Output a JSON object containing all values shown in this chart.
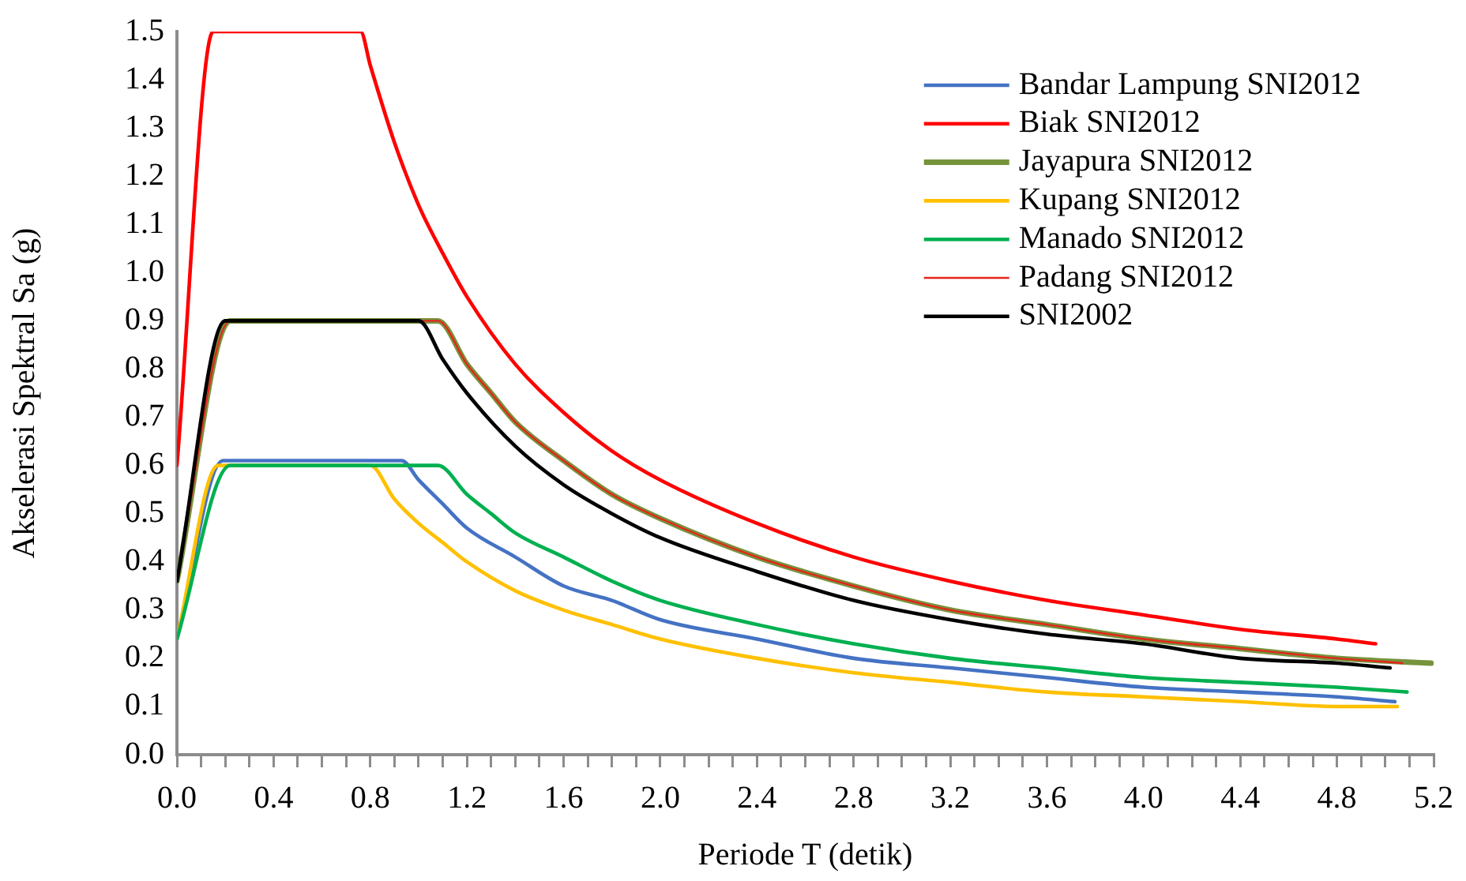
{
  "chart_data": {
    "type": "line",
    "xlabel": "Periode T (detik)",
    "ylabel": "Akselerasi Spektral Sa (g)",
    "xlim": [
      0,
      5.2
    ],
    "ylim": [
      0,
      1.5
    ],
    "xticks": [
      {
        "value": 0,
        "label": "0.0"
      },
      {
        "value": 0.1,
        "label": null
      },
      {
        "value": 0.2,
        "label": null
      },
      {
        "value": 0.3,
        "label": null
      },
      0.4,
      {
        "value": 0.5,
        "label": null
      },
      {
        "value": 0.6,
        "label": null
      },
      {
        "value": 0.7,
        "label": null
      },
      0.8,
      {
        "value": 0.9,
        "label": null
      },
      {
        "value": 1,
        "label": null
      },
      {
        "value": 1.1,
        "label": null
      },
      1.2,
      {
        "value": 1.3,
        "label": null
      },
      {
        "value": 1.4,
        "label": null
      },
      {
        "value": 1.5,
        "label": null
      },
      1.6,
      {
        "value": 1.7,
        "label": null
      },
      {
        "value": 1.8,
        "label": null
      },
      {
        "value": 1.9,
        "label": null
      },
      {
        "value": 2,
        "label": "2.0"
      },
      {
        "value": 2.1,
        "label": null
      },
      {
        "value": 2.2,
        "label": null
      },
      {
        "value": 2.3,
        "label": null
      },
      2.4,
      {
        "value": 2.5,
        "label": null
      },
      {
        "value": 2.6,
        "label": null
      },
      {
        "value": 2.7,
        "label": null
      },
      2.8,
      {
        "value": 2.9,
        "label": null
      },
      {
        "value": 3,
        "label": null
      },
      {
        "value": 3.1,
        "label": null
      },
      3.2,
      {
        "value": 3.3,
        "label": null
      },
      {
        "value": 3.4,
        "label": null
      },
      {
        "value": 3.5,
        "label": null
      },
      3.6,
      {
        "value": 3.7,
        "label": null
      },
      {
        "value": 3.8,
        "label": null
      },
      {
        "value": 3.9,
        "label": null
      },
      {
        "value": 4,
        "label": "4.0"
      },
      {
        "value": 4.1,
        "label": null
      },
      {
        "value": 4.2,
        "label": null
      },
      {
        "value": 4.3,
        "label": null
      },
      4.4,
      {
        "value": 4.5,
        "label": null
      },
      {
        "value": 4.6,
        "label": null
      },
      {
        "value": 4.7,
        "label": null
      },
      4.8,
      {
        "value": 4.9,
        "label": null
      },
      {
        "value": 5,
        "label": null
      },
      {
        "value": 5.1,
        "label": null
      },
      5.2
    ],
    "yticks": [
      {
        "value": 0,
        "label": "0.0"
      },
      0.1,
      0.2,
      0.3,
      0.4,
      0.5,
      0.6,
      0.7,
      0.8,
      0.9,
      {
        "value": 1,
        "label": "1.0"
      },
      1.1,
      1.2,
      1.3,
      1.4,
      1.5
    ],
    "grid": false,
    "legend": "top right",
    "marker": "none",
    "line_style": "solid",
    "series": [
      {
        "name": "Bandar Lampung SNI2012",
        "color": "#4472c4",
        "x": [
          0,
          0.19,
          0.93,
          1.0,
          1.1,
          1.2,
          1.4,
          1.6,
          1.8,
          2.0,
          2.4,
          2.8,
          3.2,
          3.6,
          4.0,
          4.4,
          4.8,
          5.04
        ],
        "values": [
          0.24,
          0.61,
          0.61,
          0.57,
          0.52,
          0.47,
          0.41,
          0.35,
          0.32,
          0.28,
          0.24,
          0.2,
          0.18,
          0.16,
          0.14,
          0.13,
          0.12,
          0.11
        ]
      },
      {
        "name": "Biak SNI2012",
        "color": "#ff0000",
        "x": [
          0,
          0.15,
          0.76,
          0.8,
          0.9,
          1.0,
          1.1,
          1.2,
          1.4,
          1.6,
          1.8,
          2.0,
          2.4,
          2.8,
          3.2,
          3.6,
          4.0,
          4.4,
          4.8,
          4.96
        ],
        "values": [
          0.6,
          1.5,
          1.5,
          1.43,
          1.27,
          1.14,
          1.04,
          0.95,
          0.81,
          0.71,
          0.63,
          0.57,
          0.48,
          0.41,
          0.36,
          0.32,
          0.29,
          0.26,
          0.24,
          0.23
        ]
      },
      {
        "name": "Jayapura SNI2012",
        "color": "#77933c",
        "x": [
          0,
          0.22,
          1.08,
          1.2,
          1.3,
          1.4,
          1.6,
          1.8,
          2.0,
          2.4,
          2.8,
          3.2,
          3.6,
          4.0,
          4.4,
          4.8,
          5.19
        ],
        "values": [
          0.36,
          0.9,
          0.9,
          0.81,
          0.75,
          0.69,
          0.61,
          0.54,
          0.49,
          0.41,
          0.35,
          0.3,
          0.27,
          0.24,
          0.22,
          0.2,
          0.19
        ]
      },
      {
        "name": "Kupang SNI2012",
        "color": "#ffc000",
        "x": [
          0,
          0.17,
          0.8,
          0.9,
          1.0,
          1.1,
          1.2,
          1.4,
          1.6,
          1.8,
          2.0,
          2.4,
          2.8,
          3.2,
          3.6,
          4.0,
          4.4,
          4.8,
          5.05
        ],
        "values": [
          0.24,
          0.6,
          0.6,
          0.53,
          0.48,
          0.44,
          0.4,
          0.34,
          0.3,
          0.27,
          0.24,
          0.2,
          0.17,
          0.15,
          0.13,
          0.12,
          0.11,
          0.1,
          0.1
        ]
      },
      {
        "name": "Manado SNI2012",
        "color": "#00b050",
        "x": [
          0,
          0.22,
          1.08,
          1.2,
          1.3,
          1.4,
          1.6,
          1.8,
          2.0,
          2.4,
          2.8,
          3.2,
          3.6,
          4.0,
          4.4,
          4.8,
          5.09
        ],
        "values": [
          0.24,
          0.6,
          0.6,
          0.54,
          0.5,
          0.46,
          0.41,
          0.36,
          0.32,
          0.27,
          0.23,
          0.2,
          0.18,
          0.16,
          0.15,
          0.14,
          0.13
        ]
      },
      {
        "name": "Padang SNI2012",
        "color": "#e3261c",
        "x": [
          0,
          0.22,
          1.08,
          1.2,
          1.3,
          1.4,
          1.6,
          1.8,
          2.0,
          2.4,
          2.8,
          3.2,
          3.6,
          4.0,
          4.4,
          4.8,
          5.07
        ],
        "values": [
          0.36,
          0.9,
          0.9,
          0.81,
          0.75,
          0.69,
          0.61,
          0.54,
          0.49,
          0.41,
          0.35,
          0.3,
          0.27,
          0.24,
          0.22,
          0.2,
          0.19
        ]
      },
      {
        "name": "SNI2002",
        "color": "#000000",
        "x": [
          0,
          0.2,
          1.0,
          1.1,
          1.2,
          1.4,
          1.6,
          1.8,
          2.0,
          2.4,
          2.8,
          3.2,
          3.6,
          4.0,
          4.4,
          4.8,
          5.02
        ],
        "values": [
          0.36,
          0.9,
          0.9,
          0.82,
          0.75,
          0.64,
          0.56,
          0.5,
          0.45,
          0.38,
          0.32,
          0.28,
          0.25,
          0.23,
          0.2,
          0.19,
          0.18
        ]
      }
    ]
  }
}
